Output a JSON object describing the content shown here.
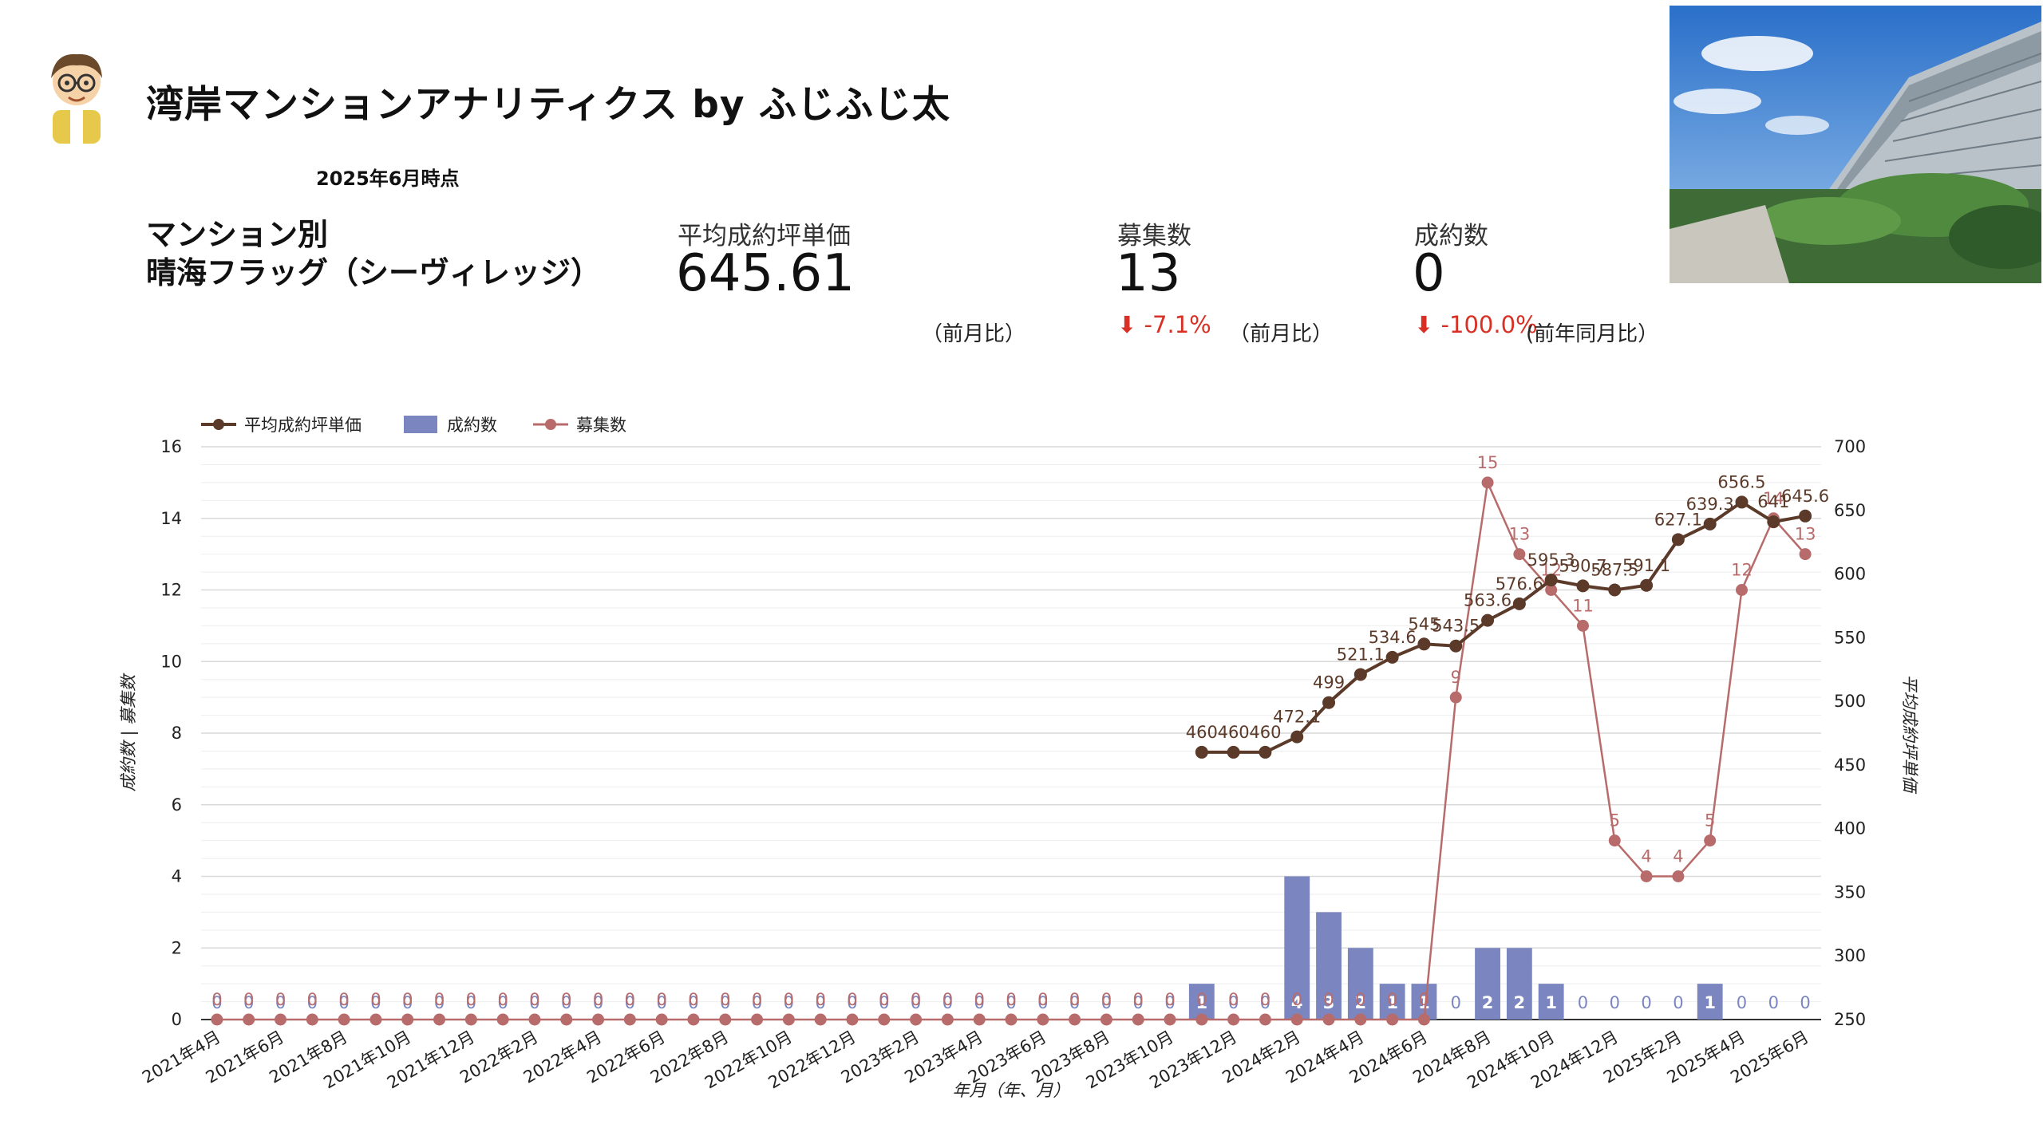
{
  "header": {
    "title": "湾岸マンションアナリティクス by ふじふじ太",
    "as_of": "2025年6月時点",
    "mansion_heading_line1": "マンション別",
    "mansion_heading_line2": "晴海フラッグ（シーヴィレッジ）"
  },
  "kpis": {
    "avg_price": {
      "label": "平均成約坪単価",
      "value": "645.61",
      "compare": "（前月比）"
    },
    "listings": {
      "label": "募集数",
      "value": "13",
      "delta": "-7.1%",
      "compare": "（前月比）"
    },
    "deals": {
      "label": "成約数",
      "value": "0",
      "delta": "-100.0%",
      "compare": "(前年同月比）"
    }
  },
  "colors": {
    "price_line": "#5b3a29",
    "deals_bar": "#7b86c0",
    "listings_line": "#b86b6b",
    "negative": "#d93025",
    "grid": "#d9d9d9"
  },
  "chart_data": {
    "type": "combo",
    "months": [
      "2021年4月",
      "2021年5月",
      "2021年6月",
      "2021年7月",
      "2021年8月",
      "2021年9月",
      "2021年10月",
      "2021年11月",
      "2021年12月",
      "2022年1月",
      "2022年2月",
      "2022年3月",
      "2022年4月",
      "2022年5月",
      "2022年6月",
      "2022年7月",
      "2022年8月",
      "2022年9月",
      "2022年10月",
      "2022年11月",
      "2022年12月",
      "2023年1月",
      "2023年2月",
      "2023年3月",
      "2023年4月",
      "2023年5月",
      "2023年6月",
      "2023年7月",
      "2023年8月",
      "2023年9月",
      "2023年10月",
      "2023年11月",
      "2023年12月",
      "2024年1月",
      "2024年2月",
      "2024年3月",
      "2024年4月",
      "2024年5月",
      "2024年6月",
      "2024年7月",
      "2024年8月",
      "2024年9月",
      "2024年10月",
      "2024年11月",
      "2024年12月",
      "2025年1月",
      "2025年2月",
      "2025年3月",
      "2025年4月",
      "2025年5月",
      "2025年6月"
    ],
    "x_tick_labels": [
      "2021年4月",
      "2021年6月",
      "2021年8月",
      "2021年10月",
      "2021年12月",
      "2022年2月",
      "2022年4月",
      "2022年6月",
      "2022年8月",
      "2022年10月",
      "2022年12月",
      "2023年2月",
      "2023年4月",
      "2023年6月",
      "2023年8月",
      "2023年10月",
      "2023年12月",
      "2024年2月",
      "2024年4月",
      "2024年6月",
      "2024年8月",
      "2024年10月",
      "2024年12月",
      "2025年2月",
      "2025年4月",
      "2025年6月"
    ],
    "xlabel": "年月（年、月）",
    "ylabel_left": "成約数 | 募集数",
    "ylabel_right": "平均成約坪単価",
    "ylim_left": [
      0,
      16
    ],
    "yticks_left": [
      0,
      2,
      4,
      6,
      8,
      10,
      12,
      14,
      16
    ],
    "ylim_right": [
      250,
      700
    ],
    "yticks_right": [
      250,
      300,
      350,
      400,
      450,
      500,
      550,
      600,
      650,
      700
    ],
    "legend": [
      "平均成約坪単価",
      "成約数",
      "募集数"
    ],
    "legend_position": "top-left",
    "series": [
      {
        "name": "平均成約坪単価",
        "kind": "line",
        "axis": "right",
        "values": [
          null,
          null,
          null,
          null,
          null,
          null,
          null,
          null,
          null,
          null,
          null,
          null,
          null,
          null,
          null,
          null,
          null,
          null,
          null,
          null,
          null,
          null,
          null,
          null,
          null,
          null,
          null,
          null,
          null,
          null,
          null,
          460,
          460,
          460,
          472.1,
          499,
          521.1,
          534.6,
          545,
          543.5,
          563.6,
          576.6,
          595.3,
          590.7,
          587.5,
          591.1,
          627.1,
          639.3,
          656.5,
          641,
          645.6
        ],
        "labels": [
          null,
          null,
          null,
          null,
          null,
          null,
          null,
          null,
          null,
          null,
          null,
          null,
          null,
          null,
          null,
          null,
          null,
          null,
          null,
          null,
          null,
          null,
          null,
          null,
          null,
          null,
          null,
          null,
          null,
          null,
          null,
          "460",
          "460",
          "460",
          "472.1",
          "499",
          "521.1",
          "534.6",
          "545",
          "543.5",
          "563.6",
          "576.6",
          "595.3",
          "590.7",
          "587.5",
          "591.1",
          "627.1",
          "639.3",
          "656.5",
          "641",
          "645.6"
        ]
      },
      {
        "name": "成約数",
        "kind": "bar",
        "axis": "left",
        "values": [
          0,
          0,
          0,
          0,
          0,
          0,
          0,
          0,
          0,
          0,
          0,
          0,
          0,
          0,
          0,
          0,
          0,
          0,
          0,
          0,
          0,
          0,
          0,
          0,
          0,
          0,
          0,
          0,
          0,
          0,
          0,
          1,
          0,
          0,
          4,
          3,
          2,
          1,
          1,
          0,
          2,
          2,
          1,
          0,
          0,
          0,
          0,
          1,
          0,
          0,
          0
        ]
      },
      {
        "name": "募集数",
        "kind": "line",
        "axis": "left",
        "values": [
          0,
          0,
          0,
          0,
          0,
          0,
          0,
          0,
          0,
          0,
          0,
          0,
          0,
          0,
          0,
          0,
          0,
          0,
          0,
          0,
          0,
          0,
          0,
          0,
          0,
          0,
          0,
          0,
          0,
          0,
          0,
          0,
          0,
          0,
          0,
          0,
          0,
          0,
          0,
          9,
          15,
          13,
          12,
          11,
          5,
          4,
          4,
          5,
          12,
          14,
          13
        ]
      }
    ]
  }
}
